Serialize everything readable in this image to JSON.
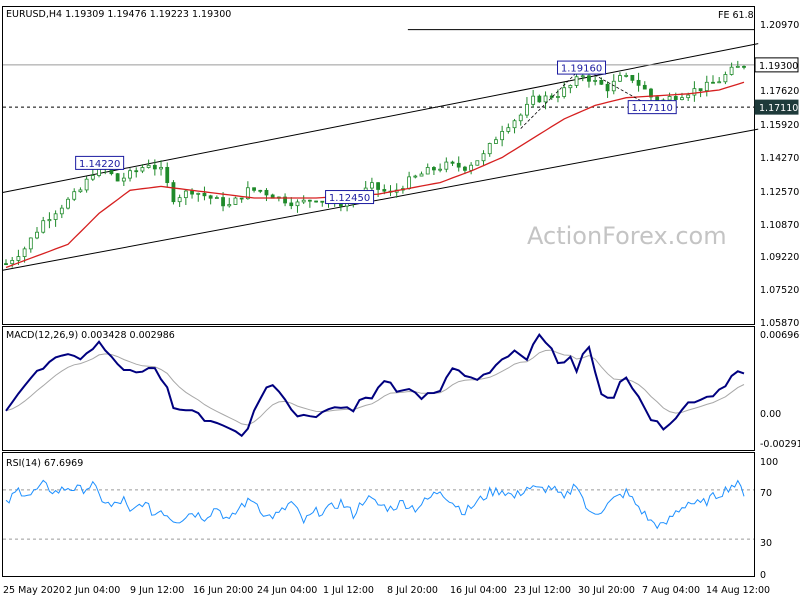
{
  "chart_data": [
    {
      "type": "line",
      "title": "EURUSD,H4  1.19309 1.19476 1.19223 1.19300",
      "series": [
        {
          "name": "",
          "color": "#1f8a2a",
          "kind": "candles"
        },
        {
          "name": "",
          "color": "#d62020",
          "kind": "moving-average"
        }
      ],
      "y_ticks": [
        "1.20970",
        "1.17620",
        "1.15920",
        "1.14270",
        "1.12570",
        "1.10870",
        "1.09220",
        "1.07520",
        "1.05870"
      ],
      "y_range": [
        1.0587,
        1.223
      ],
      "price_tags": [
        {
          "text": "1.19300",
          "value": 1.193,
          "style": "light"
        },
        {
          "text": "1.17110",
          "value": 1.1711,
          "style": "dark"
        }
      ],
      "annotations": [
        {
          "text": "1.14220",
          "x": 15.1,
          "y": 1.1422
        },
        {
          "text": "1.12450",
          "x": 55.4,
          "y": 1.1245
        },
        {
          "text": "1.19160",
          "x": 92.8,
          "y": 1.1916
        },
        {
          "text": "1.17110",
          "x": 104.2,
          "y": 1.1711
        }
      ],
      "fib_label": "FE 61.8",
      "fib_level": 1.2113,
      "hline_solid": 1.193,
      "hline_dashed": 1.1711,
      "channel_upper": [
        [
          0,
          1.1268
        ],
        [
          120,
          1.204
        ]
      ],
      "channel_lower": [
        [
          0,
          1.0865
        ],
        [
          120,
          1.1597
        ]
      ],
      "watermark": "ActionForex.com",
      "close_anchors": [
        [
          0,
          1.09
        ],
        [
          3,
          1.098
        ],
        [
          6,
          1.112
        ],
        [
          9,
          1.12
        ],
        [
          12,
          1.128
        ],
        [
          15,
          1.142
        ],
        [
          18,
          1.133
        ],
        [
          21,
          1.138
        ],
        [
          23,
          1.142
        ],
        [
          25,
          1.138
        ],
        [
          27,
          1.124
        ],
        [
          30,
          1.128
        ],
        [
          33,
          1.124
        ],
        [
          36,
          1.12
        ],
        [
          39,
          1.128
        ],
        [
          41,
          1.128
        ],
        [
          44,
          1.124
        ],
        [
          47,
          1.121
        ],
        [
          50,
          1.124
        ],
        [
          53,
          1.12
        ],
        [
          56,
          1.124
        ],
        [
          59,
          1.13
        ],
        [
          62,
          1.126
        ],
        [
          65,
          1.133
        ],
        [
          68,
          1.138
        ],
        [
          71,
          1.141
        ],
        [
          74,
          1.14
        ],
        [
          77,
          1.146
        ],
        [
          80,
          1.16
        ],
        [
          83,
          1.167
        ],
        [
          85,
          1.175
        ],
        [
          87,
          1.176
        ],
        [
          89,
          1.178
        ],
        [
          91,
          1.182
        ],
        [
          93,
          1.188
        ],
        [
          95,
          1.184
        ],
        [
          97,
          1.181
        ],
        [
          99,
          1.186
        ],
        [
          101,
          1.186
        ],
        [
          103,
          1.18
        ],
        [
          105,
          1.173
        ],
        [
          107,
          1.176
        ],
        [
          109,
          1.178
        ],
        [
          111,
          1.18
        ],
        [
          113,
          1.182
        ],
        [
          115,
          1.185
        ],
        [
          117,
          1.19
        ],
        [
          119,
          1.193
        ]
      ],
      "ma_anchors": [
        [
          0,
          1.088
        ],
        [
          10,
          1.1
        ],
        [
          15,
          1.116
        ],
        [
          20,
          1.128
        ],
        [
          25,
          1.13
        ],
        [
          30,
          1.128
        ],
        [
          40,
          1.124
        ],
        [
          50,
          1.124
        ],
        [
          60,
          1.126
        ],
        [
          70,
          1.132
        ],
        [
          75,
          1.138
        ],
        [
          80,
          1.145
        ],
        [
          85,
          1.155
        ],
        [
          90,
          1.165
        ],
        [
          95,
          1.172
        ],
        [
          100,
          1.176
        ],
        [
          105,
          1.177
        ],
        [
          110,
          1.178
        ],
        [
          115,
          1.18
        ],
        [
          119,
          1.184
        ]
      ]
    },
    {
      "type": "line",
      "title": "MACD(12,26,9) 0.003428 0.002986",
      "y_ticks": [
        "0.006966",
        "0.00",
        "-0.002913"
      ],
      "y_range": [
        -0.004,
        0.008
      ],
      "price_tags": [
        {
          "text": "0.00",
          "value": 0.0,
          "style": "none"
        }
      ],
      "series": [
        {
          "name": "",
          "color": "#00007f",
          "kind": "macd"
        },
        {
          "name": "",
          "color": "#a8a8a8",
          "kind": "signal"
        }
      ],
      "macd_anchors": [
        [
          0,
          0.0
        ],
        [
          4,
          0.003
        ],
        [
          8,
          0.0052
        ],
        [
          10,
          0.0055
        ],
        [
          12,
          0.005
        ],
        [
          14,
          0.006
        ],
        [
          15,
          0.0066
        ],
        [
          17,
          0.005
        ],
        [
          19,
          0.0038
        ],
        [
          21,
          0.0035
        ],
        [
          23,
          0.0039
        ],
        [
          24,
          0.004
        ],
        [
          26,
          0.002
        ],
        [
          27,
          0.0002
        ],
        [
          28,
          -0.0001
        ],
        [
          30,
          -0.0001
        ],
        [
          32,
          -0.001
        ],
        [
          35,
          -0.0015
        ],
        [
          36,
          -0.002
        ],
        [
          38,
          -0.0025
        ],
        [
          39,
          -0.002
        ],
        [
          40,
          0.0
        ],
        [
          42,
          0.002
        ],
        [
          43,
          0.0025
        ],
        [
          45,
          0.001
        ],
        [
          47,
          -0.0007
        ],
        [
          50,
          -0.0006
        ],
        [
          52,
          0.0
        ],
        [
          54,
          0.0003
        ],
        [
          56,
          -0.0002
        ],
        [
          57,
          0.0008
        ],
        [
          59,
          0.0012
        ],
        [
          61,
          0.0026
        ],
        [
          62,
          0.0024
        ],
        [
          63,
          0.0018
        ],
        [
          65,
          0.002
        ],
        [
          67,
          0.0009
        ],
        [
          68,
          0.0014
        ],
        [
          70,
          0.0018
        ],
        [
          72,
          0.0041
        ],
        [
          74,
          0.0032
        ],
        [
          76,
          0.0029
        ],
        [
          78,
          0.0037
        ],
        [
          80,
          0.0049
        ],
        [
          82,
          0.0057
        ],
        [
          84,
          0.005
        ],
        [
          86,
          0.0072
        ],
        [
          88,
          0.006
        ],
        [
          89,
          0.0043
        ],
        [
          91,
          0.005
        ],
        [
          92,
          0.0036
        ],
        [
          93,
          0.0054
        ],
        [
          94,
          0.0059
        ],
        [
          96,
          0.0016
        ],
        [
          98,
          0.001
        ],
        [
          99,
          0.0025
        ],
        [
          100,
          0.003
        ],
        [
          102,
          0.0014
        ],
        [
          104,
          -0.001
        ],
        [
          106,
          -0.0018
        ],
        [
          108,
          -0.0008
        ],
        [
          110,
          0.0006
        ],
        [
          112,
          0.001
        ],
        [
          114,
          0.0014
        ],
        [
          116,
          0.0024
        ],
        [
          117,
          0.0032
        ],
        [
          118,
          0.0036
        ],
        [
          119,
          0.0034
        ]
      ]
    },
    {
      "type": "line",
      "title": "RSI(14) 67.6969",
      "y_ticks": [
        "100",
        "70",
        "30",
        "0"
      ],
      "y_range": [
        0,
        100
      ],
      "series": [
        {
          "name": "",
          "color": "#1e90ff",
          "kind": "rsi"
        }
      ],
      "level_lines": [
        70,
        30
      ],
      "rsi_anchors": [
        [
          0,
          58
        ],
        [
          2,
          70
        ],
        [
          4,
          66
        ],
        [
          6,
          74
        ],
        [
          8,
          68
        ],
        [
          10,
          72
        ],
        [
          12,
          70
        ],
        [
          14,
          74
        ],
        [
          15,
          65
        ],
        [
          17,
          56
        ],
        [
          19,
          62
        ],
        [
          20,
          50
        ],
        [
          22,
          60
        ],
        [
          24,
          50
        ],
        [
          25,
          54
        ],
        [
          27,
          46
        ],
        [
          28,
          46
        ],
        [
          30,
          52
        ],
        [
          32,
          48
        ],
        [
          34,
          56
        ],
        [
          36,
          44
        ],
        [
          38,
          58
        ],
        [
          40,
          62
        ],
        [
          42,
          48
        ],
        [
          44,
          50
        ],
        [
          46,
          60
        ],
        [
          48,
          44
        ],
        [
          50,
          52
        ],
        [
          52,
          54
        ],
        [
          54,
          60
        ],
        [
          56,
          50
        ],
        [
          58,
          64
        ],
        [
          60,
          58
        ],
        [
          62,
          55
        ],
        [
          64,
          60
        ],
        [
          66,
          55
        ],
        [
          68,
          62
        ],
        [
          70,
          70
        ],
        [
          72,
          60
        ],
        [
          74,
          52
        ],
        [
          76,
          60
        ],
        [
          78,
          68
        ],
        [
          80,
          70
        ],
        [
          82,
          64
        ],
        [
          84,
          72
        ],
        [
          86,
          70
        ],
        [
          88,
          72
        ],
        [
          90,
          62
        ],
        [
          92,
          76
        ],
        [
          94,
          50
        ],
        [
          96,
          54
        ],
        [
          98,
          62
        ],
        [
          100,
          68
        ],
        [
          102,
          56
        ],
        [
          104,
          44
        ],
        [
          106,
          40
        ],
        [
          108,
          52
        ],
        [
          110,
          60
        ],
        [
          112,
          58
        ],
        [
          114,
          64
        ],
        [
          116,
          70
        ],
        [
          117,
          74
        ],
        [
          118,
          74
        ],
        [
          119,
          68
        ]
      ]
    }
  ],
  "x_axis_labels": [
    "25 May 2020",
    "2 Jun 04:00",
    "9 Jun 12:00",
    "16 Jun 20:00",
    "24 Jun 04:00",
    "1 Jul 12:00",
    "8 Jul 20:00",
    "16 Jul 04:00",
    "23 Jul 12:00",
    "30 Jul 20:00",
    "7 Aug 04:00",
    "14 Aug 12:00"
  ],
  "x_label_bar": [
    0,
    10.1,
    20.3,
    30.4,
    40.6,
    50.7,
    60.9,
    71.0,
    81.2,
    91.3,
    101.5,
    111.6
  ],
  "x_count": 120
}
